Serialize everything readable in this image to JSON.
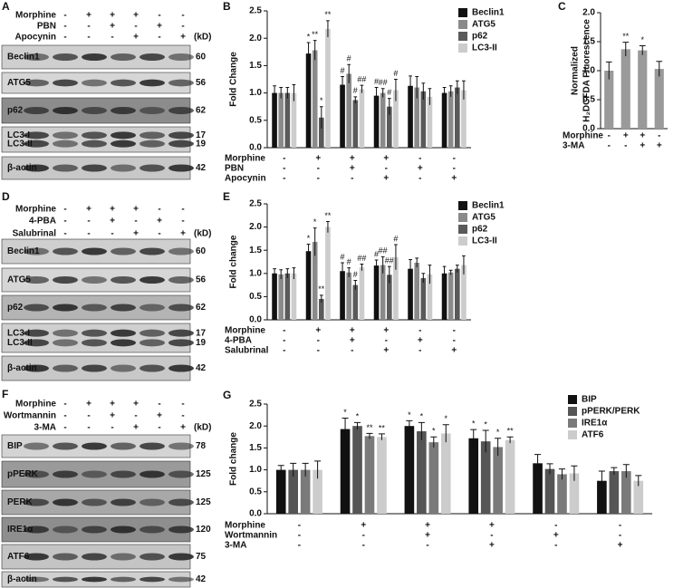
{
  "blots": [
    {
      "panel": "A",
      "kd_header": "(kD)",
      "treatments": [
        {
          "name": "Morphine",
          "signs": [
            "-",
            "+",
            "+",
            "+",
            "-",
            "-"
          ]
        },
        {
          "name": "PBN",
          "signs": [
            "-",
            "-",
            "+",
            "-",
            "+",
            "-"
          ]
        },
        {
          "name": "Apocynin",
          "signs": [
            "-",
            "-",
            "-",
            "+",
            "-",
            "+"
          ]
        }
      ],
      "rows": [
        [
          {
            "name": "Beclin1",
            "kd": 60
          }
        ],
        [
          {
            "name": "ATG5",
            "kd": 56
          }
        ],
        [
          {
            "name": "p62",
            "kd": 62
          }
        ],
        [
          {
            "name": "LC3-I",
            "kd": 17
          },
          {
            "name": "LC3-II",
            "kd": 19
          }
        ],
        [
          {
            "name": "β-actin",
            "kd": 42
          }
        ]
      ]
    },
    {
      "panel": "D",
      "kd_header": "(kD)",
      "treatments": [
        {
          "name": "Morphine",
          "signs": [
            "-",
            "+",
            "+",
            "+",
            "-",
            "-"
          ]
        },
        {
          "name": "4-PBA",
          "signs": [
            "-",
            "-",
            "+",
            "-",
            "+",
            "-"
          ]
        },
        {
          "name": "Salubrinal",
          "signs": [
            "-",
            "-",
            "-",
            "+",
            "-",
            "+"
          ]
        }
      ],
      "rows": [
        [
          {
            "name": "Beclin1",
            "kd": 60
          }
        ],
        [
          {
            "name": "ATG5",
            "kd": 56
          }
        ],
        [
          {
            "name": "p62",
            "kd": 62
          }
        ],
        [
          {
            "name": "LC3-I",
            "kd": 17
          },
          {
            "name": "LC3-II",
            "kd": 19
          }
        ],
        [
          {
            "name": "β-actin",
            "kd": 42
          }
        ]
      ]
    },
    {
      "panel": "F",
      "kd_header": "(kD)",
      "treatments": [
        {
          "name": "Morphine",
          "signs": [
            "-",
            "+",
            "+",
            "+",
            "-",
            "-"
          ]
        },
        {
          "name": "Wortmannin",
          "signs": [
            "-",
            "-",
            "+",
            "-",
            "+",
            "-"
          ]
        },
        {
          "name": "3-MA",
          "signs": [
            "-",
            "-",
            "-",
            "+",
            "-",
            "+"
          ]
        }
      ],
      "rows": [
        [
          {
            "name": "BIP",
            "kd": 78
          }
        ],
        [
          {
            "name": "pPERK",
            "kd": 125
          }
        ],
        [
          {
            "name": "PERK",
            "kd": 125
          }
        ],
        [
          {
            "name": "IRE1α",
            "kd": 120
          }
        ],
        [
          {
            "name": "ATF6",
            "kd": 75
          }
        ],
        [
          {
            "name": "β-actin",
            "kd": 42
          }
        ]
      ]
    }
  ],
  "chart_data": [
    {
      "type": "bar",
      "panel": "B",
      "ylabel": "Fold Change",
      "legend": true,
      "ylim": [
        0,
        2.5
      ],
      "yticks": [
        {
          "value": 0,
          "label": "0.0"
        },
        {
          "value": 0.5,
          "label": "0.5"
        },
        {
          "value": 1,
          "label": "1.0"
        },
        {
          "value": 1.5,
          "label": "1.5"
        },
        {
          "value": 2,
          "label": "2.0"
        },
        {
          "value": 2.5,
          "label": "2.5"
        }
      ],
      "treatments": [
        {
          "name": "Morphine",
          "signs": [
            "-",
            "+",
            "+",
            "+",
            "-",
            "-"
          ]
        },
        {
          "name": "PBN",
          "signs": [
            "-",
            "-",
            "+",
            "-",
            "+",
            "-"
          ]
        },
        {
          "name": "Apocynin",
          "signs": [
            "-",
            "-",
            "-",
            "+",
            "-",
            "+"
          ]
        }
      ],
      "series": [
        {
          "name": "Beclin1",
          "color": "#111111",
          "values": [
            1.0,
            1.72,
            1.15,
            0.95,
            1.13,
            1.0
          ],
          "errors": [
            0.13,
            0.2,
            0.15,
            0.15,
            0.18,
            0.1
          ],
          "annotations": [
            null,
            "*",
            "#",
            "#",
            null,
            null
          ]
        },
        {
          "name": "ATG5",
          "color": "#8a8a8a",
          "values": [
            1.0,
            1.78,
            1.35,
            1.0,
            1.1,
            1.03
          ],
          "errors": [
            0.1,
            0.18,
            0.17,
            0.08,
            0.2,
            0.1
          ],
          "annotations": [
            null,
            "**",
            "#",
            "##",
            null,
            null
          ]
        },
        {
          "name": "p62",
          "color": "#5a5a5a",
          "values": [
            1.0,
            0.55,
            0.87,
            0.75,
            1.03,
            1.1
          ],
          "errors": [
            0.1,
            0.2,
            0.06,
            0.15,
            0.15,
            0.12
          ],
          "annotations": [
            null,
            "*",
            "#",
            "#",
            null,
            null
          ]
        },
        {
          "name": "LC3-II",
          "color": "#cccccc",
          "values": [
            1.0,
            2.17,
            1.07,
            1.05,
            0.93,
            1.05
          ],
          "errors": [
            0.15,
            0.15,
            0.07,
            0.2,
            0.15,
            0.17
          ],
          "annotations": [
            null,
            "**",
            "##",
            "#",
            null,
            null
          ]
        }
      ]
    },
    {
      "type": "bar",
      "panel": "C",
      "ylabel": [
        "Normalized",
        "H₂DCFDA Fluorescence"
      ],
      "legend": false,
      "color": "#9a9a9a",
      "ylim": [
        0,
        2
      ],
      "yticks": [
        {
          "value": 0,
          "label": "0.0"
        },
        {
          "value": 0.5,
          "label": "0.5"
        },
        {
          "value": 1,
          "label": "1.0"
        },
        {
          "value": 1.5,
          "label": "1.5"
        },
        {
          "value": 2,
          "label": "2.0"
        }
      ],
      "treatments": [
        {
          "name": "Morphine",
          "signs": [
            "-",
            "+",
            "+",
            "-"
          ]
        },
        {
          "name": "3-MA",
          "signs": [
            "-",
            "-",
            "+",
            "+"
          ]
        }
      ],
      "values": [
        1.0,
        1.37,
        1.35,
        1.03
      ],
      "errors": [
        0.15,
        0.12,
        0.08,
        0.13
      ],
      "annotations": [
        null,
        "**",
        "*",
        null
      ]
    },
    {
      "type": "bar",
      "panel": "E",
      "ylabel": "Fold change",
      "legend": true,
      "ylim": [
        0,
        2.5
      ],
      "yticks": [
        {
          "value": 0,
          "label": "0.0"
        },
        {
          "value": 0.5,
          "label": "0.5"
        },
        {
          "value": 1,
          "label": "1.0"
        },
        {
          "value": 1.5,
          "label": "1.5"
        },
        {
          "value": 2,
          "label": "2.0"
        },
        {
          "value": 2.5,
          "label": "2.5"
        }
      ],
      "treatments": [
        {
          "name": "Morphine",
          "signs": [
            "-",
            "+",
            "+",
            "+",
            "-",
            "-"
          ]
        },
        {
          "name": "4-PBA",
          "signs": [
            "-",
            "-",
            "+",
            "-",
            "+",
            "-"
          ]
        },
        {
          "name": "Salubrinal",
          "signs": [
            "-",
            "-",
            "-",
            "+",
            "-",
            "+"
          ]
        }
      ],
      "series": [
        {
          "name": "Beclin1",
          "color": "#111111",
          "values": [
            1.0,
            1.48,
            1.05,
            1.17,
            1.1,
            1.0
          ],
          "errors": [
            0.1,
            0.15,
            0.18,
            0.12,
            0.2,
            0.15
          ],
          "annotations": [
            null,
            "*",
            "#",
            "#",
            null,
            null
          ]
        },
        {
          "name": "ATG5",
          "color": "#8a8a8a",
          "values": [
            0.98,
            1.68,
            1.02,
            1.18,
            1.23,
            1.02
          ],
          "errors": [
            0.1,
            0.3,
            0.1,
            0.18,
            0.1,
            0.05
          ],
          "annotations": [
            null,
            "*",
            "#",
            "##",
            null,
            null
          ]
        },
        {
          "name": "p62",
          "color": "#5a5a5a",
          "values": [
            1.0,
            0.45,
            0.75,
            0.97,
            0.9,
            1.1
          ],
          "errors": [
            0.1,
            0.08,
            0.1,
            0.18,
            0.1,
            0.08
          ],
          "annotations": [
            null,
            "**",
            "#",
            "##",
            null,
            null
          ]
        },
        {
          "name": "LC3-II",
          "color": "#cccccc",
          "values": [
            1.0,
            2.0,
            1.13,
            1.35,
            0.98,
            1.18
          ],
          "errors": [
            0.12,
            0.12,
            0.07,
            0.27,
            0.2,
            0.2
          ],
          "annotations": [
            null,
            "**",
            "##",
            "#",
            null,
            null
          ]
        }
      ]
    },
    {
      "type": "bar",
      "panel": "G",
      "ylabel": "Fold change",
      "legend": true,
      "ylim": [
        0,
        2.5
      ],
      "yticks": [
        {
          "value": 0,
          "label": "0.0"
        },
        {
          "value": 0.5,
          "label": "0.5"
        },
        {
          "value": 1,
          "label": "1.0"
        },
        {
          "value": 1.5,
          "label": "1.5"
        },
        {
          "value": 2,
          "label": "2.0"
        },
        {
          "value": 2.5,
          "label": "2.5"
        }
      ],
      "treatments": [
        {
          "name": "Morphine",
          "signs": [
            "-",
            "+",
            "+",
            "+",
            "-",
            "-"
          ]
        },
        {
          "name": "Wortmannin",
          "signs": [
            "-",
            "-",
            "+",
            "-",
            "+",
            "-"
          ]
        },
        {
          "name": "3-MA",
          "signs": [
            "-",
            "-",
            "-",
            "+",
            "-",
            "+"
          ]
        }
      ],
      "series": [
        {
          "name": "BIP",
          "color": "#111111",
          "values": [
            1.0,
            1.93,
            2.0,
            1.72,
            1.15,
            0.75
          ],
          "errors": [
            0.1,
            0.25,
            0.12,
            0.2,
            0.2,
            0.22
          ],
          "annotations": [
            null,
            "*",
            "*",
            "*",
            null,
            null
          ]
        },
        {
          "name": "pPERK/PERK",
          "color": "#555555",
          "values": [
            1.0,
            2.0,
            1.88,
            1.65,
            1.02,
            0.97
          ],
          "errors": [
            0.15,
            0.08,
            0.2,
            0.25,
            0.12,
            0.08
          ],
          "annotations": [
            null,
            "*",
            "*",
            "*",
            null,
            null
          ]
        },
        {
          "name": "IRE1α",
          "color": "#7a7a7a",
          "values": [
            1.0,
            1.77,
            1.63,
            1.52,
            0.9,
            0.97
          ],
          "errors": [
            0.15,
            0.06,
            0.12,
            0.2,
            0.12,
            0.15
          ],
          "annotations": [
            null,
            "**",
            "*",
            "*",
            null,
            null
          ]
        },
        {
          "name": "ATF6",
          "color": "#cccccc",
          "values": [
            1.0,
            1.75,
            1.83,
            1.68,
            0.92,
            0.75
          ],
          "errors": [
            0.2,
            0.07,
            0.2,
            0.07,
            0.17,
            0.12
          ],
          "annotations": [
            null,
            "**",
            "*",
            "**",
            null,
            null
          ]
        }
      ]
    }
  ]
}
